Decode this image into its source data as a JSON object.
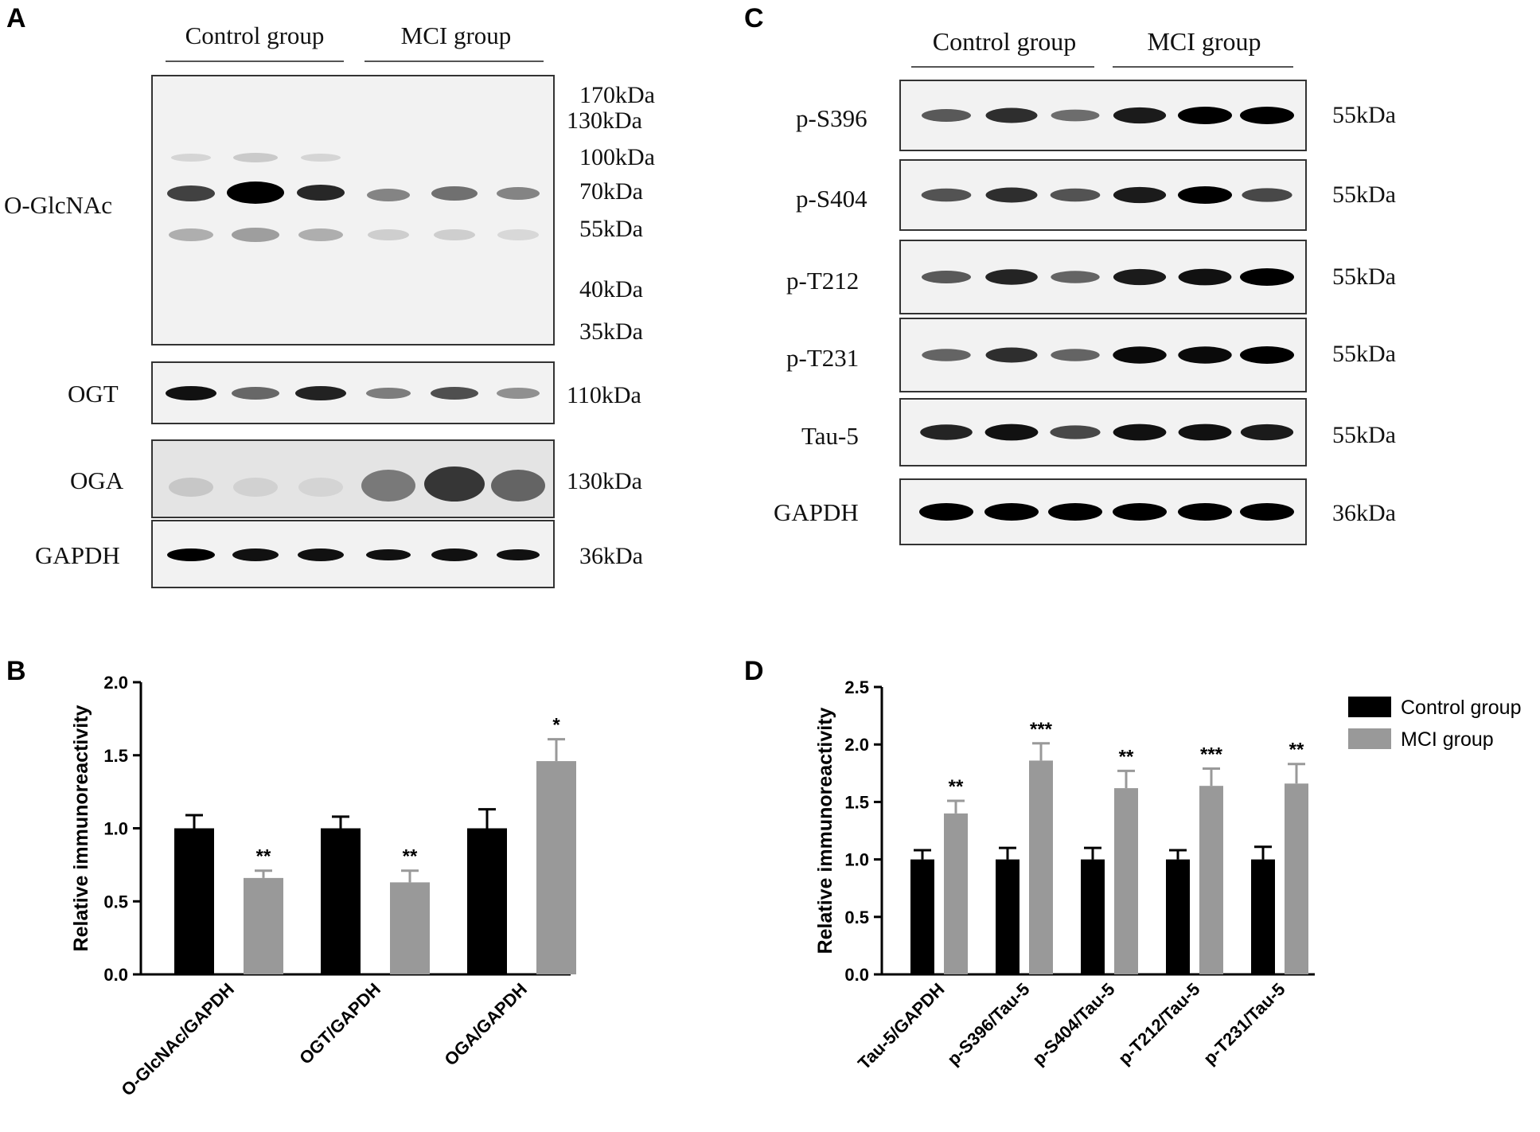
{
  "panels": {
    "A": {
      "letter": "A",
      "groups": [
        "Control group",
        "MCI group"
      ],
      "blots": [
        {
          "label": "O-GlcNAc",
          "markers": [
            "170kDa",
            "130kDa",
            "100kDa",
            "70kDa",
            "55kDa",
            "40kDa",
            "35kDa"
          ]
        },
        {
          "label": "OGT",
          "markers": [
            "110kDa"
          ]
        },
        {
          "label": "OGA",
          "markers": [
            "130kDa"
          ]
        },
        {
          "label": "GAPDH",
          "markers": [
            "36kDa"
          ]
        }
      ]
    },
    "C": {
      "letter": "C",
      "groups": [
        "Control group",
        "MCI group"
      ],
      "blots": [
        {
          "label": "p-S396",
          "marker": "55kDa"
        },
        {
          "label": "p-S404",
          "marker": "55kDa"
        },
        {
          "label": "p-T212",
          "marker": "55kDa"
        },
        {
          "label": "p-T231",
          "marker": "55kDa"
        },
        {
          "label": "Tau-5",
          "marker": "55kDa"
        },
        {
          "label": "GAPDH",
          "marker": "36kDa"
        }
      ]
    },
    "B": {
      "letter": "B"
    },
    "D": {
      "letter": "D"
    }
  },
  "chart_data": [
    {
      "type": "bar",
      "panel": "B",
      "ylabel": "Relative immunoreactivity",
      "ylim": [
        0,
        2.0
      ],
      "yticks": [
        "0.0",
        "0.5",
        "1.0",
        "1.5",
        "2.0"
      ],
      "categories": [
        "O-GlcNAc/GAPDH",
        "OGT/GAPDH",
        "OGA/GAPDH"
      ],
      "series": [
        {
          "name": "Control group",
          "color": "#000000",
          "values": [
            1.0,
            1.0,
            1.0
          ],
          "errors": [
            0.09,
            0.08,
            0.13
          ]
        },
        {
          "name": "MCI group",
          "color": "#999999",
          "values": [
            0.66,
            0.63,
            1.46
          ],
          "errors": [
            0.05,
            0.08,
            0.15
          ]
        }
      ],
      "significance": [
        "**",
        "**",
        "*"
      ]
    },
    {
      "type": "bar",
      "panel": "D",
      "ylabel": "Relative immunoreactivity",
      "ylim": [
        0,
        2.5
      ],
      "yticks": [
        "0.0",
        "0.5",
        "1.0",
        "1.5",
        "2.0",
        "2.5"
      ],
      "categories": [
        "Tau-5/GAPDH",
        "p-S396/Tau-5",
        "p-S404/Tau-5",
        "p-T212/Tau-5",
        "p-T231/Tau-5"
      ],
      "series": [
        {
          "name": "Control group",
          "color": "#000000",
          "values": [
            1.0,
            1.0,
            1.0,
            1.0,
            1.0
          ],
          "errors": [
            0.08,
            0.1,
            0.1,
            0.08,
            0.11
          ]
        },
        {
          "name": "MCI group",
          "color": "#999999",
          "values": [
            1.4,
            1.86,
            1.62,
            1.64,
            1.66
          ],
          "errors": [
            0.11,
            0.15,
            0.15,
            0.15,
            0.17
          ]
        }
      ],
      "significance": [
        "**",
        "***",
        "**",
        "***",
        "**"
      ],
      "legend": {
        "placement": "top-right",
        "entries": [
          "Control group",
          "MCI group"
        ]
      }
    }
  ]
}
